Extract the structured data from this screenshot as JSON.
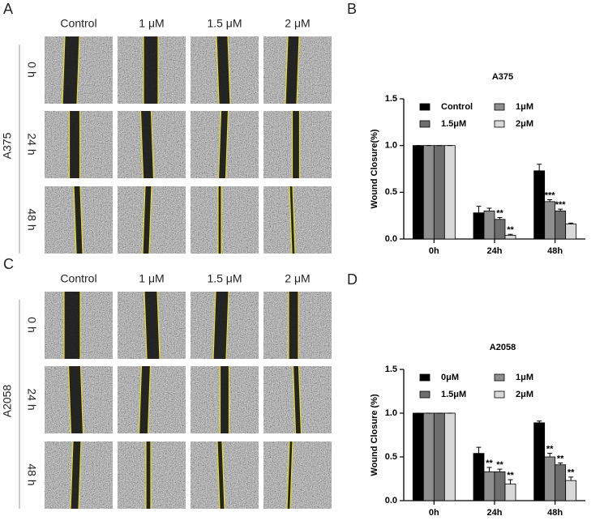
{
  "image_panels": [
    {
      "label": "A",
      "cell_line": "A375",
      "columns": [
        "Control",
        "1 μM",
        "1.5 μM",
        "2 μM"
      ],
      "rows": [
        "0 h",
        "24 h",
        "48 h"
      ]
    },
    {
      "label": "C",
      "cell_line": "A2058",
      "columns": [
        "Control",
        "1 μM",
        "1.5 μM",
        "2 μM"
      ],
      "rows": [
        "0 h",
        "24 h",
        "48 h"
      ]
    }
  ],
  "chart_data": [
    {
      "type": "bar",
      "panel_label": "B",
      "title": "A375",
      "ylabel": "Wound Closure(%)",
      "categories": [
        "0h",
        "24h",
        "48h"
      ],
      "series": [
        {
          "name": "Control",
          "color": "#000000",
          "values": [
            1,
            0.28,
            0.73
          ],
          "errors": [
            0,
            0.07,
            0.07
          ],
          "significance": [
            null,
            null,
            null
          ]
        },
        {
          "name": "1μM",
          "color": "#8e8e8e",
          "values": [
            1,
            0.3,
            0.4
          ],
          "errors": [
            0,
            0.03,
            0.02
          ],
          "significance": [
            null,
            null,
            "***"
          ]
        },
        {
          "name": "1.5μM",
          "color": "#6e6e6e",
          "values": [
            1,
            0.21,
            0.3
          ],
          "errors": [
            0,
            0.02,
            0.02
          ],
          "significance": [
            null,
            "**",
            "***"
          ]
        },
        {
          "name": "2μM",
          "color": "#d9d9d9",
          "values": [
            1,
            0.04,
            0.16
          ],
          "errors": [
            0,
            0.01,
            0.01
          ],
          "significance": [
            null,
            "**",
            null
          ]
        }
      ],
      "ylim": [
        0,
        1.5
      ],
      "yticks": [
        {
          "value": 0,
          "label": "0.0"
        },
        0.5,
        {
          "value": 1,
          "label": "1.0"
        },
        1.5
      ],
      "legend": "top-right"
    },
    {
      "type": "bar",
      "panel_label": "D",
      "title": "A2058",
      "ylabel": "Wound Closure (%)",
      "categories": [
        "0h",
        "24h",
        "48h"
      ],
      "series": [
        {
          "name": "0μM",
          "color": "#000000",
          "values": [
            1,
            0.54,
            0.89
          ],
          "errors": [
            0,
            0.07,
            0.02
          ],
          "significance": [
            null,
            null,
            null
          ]
        },
        {
          "name": "1μM",
          "color": "#8e8e8e",
          "values": [
            1,
            0.33,
            0.5
          ],
          "errors": [
            0,
            0.05,
            0.04
          ],
          "significance": [
            null,
            "**",
            "**"
          ]
        },
        {
          "name": "1.5μM",
          "color": "#6e6e6e",
          "values": [
            1,
            0.33,
            0.41
          ],
          "errors": [
            0,
            0.03,
            0.02
          ],
          "significance": [
            null,
            "**",
            "**"
          ]
        },
        {
          "name": "2μM",
          "color": "#d9d9d9",
          "values": [
            1,
            0.19,
            0.23
          ],
          "errors": [
            0,
            0.05,
            0.04
          ],
          "significance": [
            null,
            "**",
            "**"
          ]
        }
      ],
      "ylim": [
        0,
        1.5
      ],
      "yticks": [
        {
          "value": 0,
          "label": "0.0"
        },
        0.5,
        {
          "value": 1,
          "label": "1.0"
        },
        1.5
      ],
      "legend": "top-right"
    }
  ]
}
